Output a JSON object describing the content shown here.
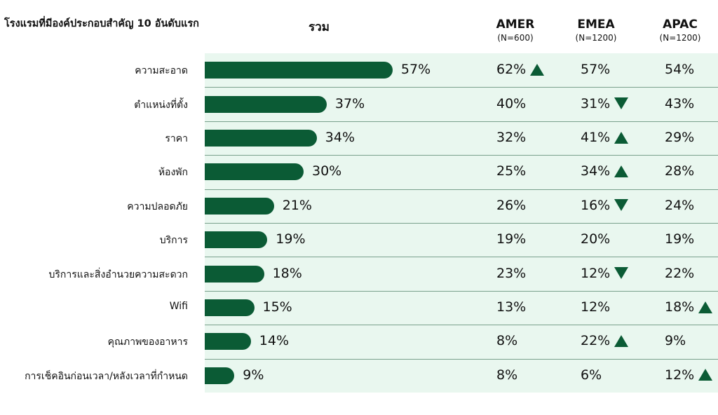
{
  "header": {
    "title": "โรงแรมที่มีองค์ประกอบสำคัญ 10 อันดับแรก",
    "total_label": "รวม",
    "regions": [
      {
        "name": "AMER",
        "n": "(N=600)"
      },
      {
        "name": "EMEA",
        "n": "(N=1200)"
      },
      {
        "name": "APAC",
        "n": "(N=1200)"
      }
    ]
  },
  "colors": {
    "bar": "#0b5b35",
    "panel": "#e9f7ef"
  },
  "chart_data": {
    "type": "bar",
    "orientation": "horizontal",
    "title": "โรงแรมที่มีองค์ประกอบสำคัญ 10 อันดับแรก",
    "xlim": [
      0,
      100
    ],
    "categories": [
      "ความสะอาด",
      "ตำแหน่งที่ตั้ง",
      "ราคา",
      "ห้องพัก",
      "ความปลอดภัย",
      "บริการ",
      "บริการและสิ่งอำนวยความสะดวก",
      "Wifi",
      "คุณภาพของอาหาร",
      "การเช็คอินก่อนเวลา/หลังเวลาที่กำหนด"
    ],
    "series": [
      {
        "name": "รวม",
        "values": [
          57,
          37,
          34,
          30,
          21,
          19,
          18,
          15,
          14,
          9
        ]
      },
      {
        "name": "AMER",
        "values": [
          62,
          40,
          32,
          25,
          26,
          19,
          23,
          13,
          8,
          8
        ],
        "markers": [
          "up",
          "",
          "",
          "",
          "",
          "",
          "",
          "",
          "",
          ""
        ]
      },
      {
        "name": "EMEA",
        "values": [
          57,
          31,
          41,
          34,
          16,
          20,
          12,
          12,
          22,
          6
        ],
        "markers": [
          "",
          "down",
          "up",
          "up",
          "down",
          "",
          "down",
          "",
          "up",
          ""
        ]
      },
      {
        "name": "APAC",
        "values": [
          54,
          43,
          29,
          28,
          24,
          19,
          22,
          18,
          9,
          12
        ],
        "markers": [
          "",
          "",
          "",
          "",
          "",
          "",
          "",
          "up",
          "",
          "up"
        ]
      }
    ]
  }
}
